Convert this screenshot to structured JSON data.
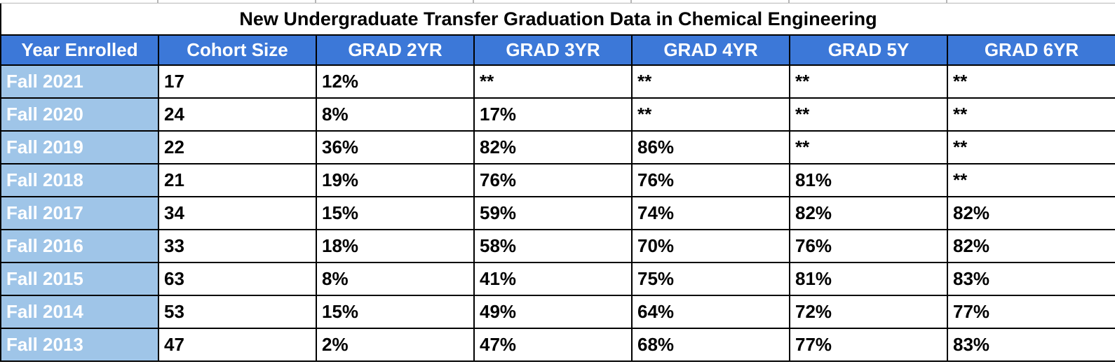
{
  "sheet": {
    "title": "New Undergraduate Transfer Graduation Data in Chemical Engineering",
    "columns": [
      "Year Enrolled",
      "Cohort Size",
      "GRAD 2YR",
      "GRAD 3YR",
      "GRAD 4YR",
      "GRAD 5Y",
      "GRAD 6YR"
    ],
    "rows": [
      {
        "year": "Fall 2021",
        "values": [
          "17",
          "12%",
          "**",
          "**",
          "**",
          "**"
        ]
      },
      {
        "year": "Fall 2020",
        "values": [
          "24",
          "8%",
          "17%",
          "**",
          "**",
          "**"
        ]
      },
      {
        "year": "Fall 2019",
        "values": [
          "22",
          "36%",
          "82%",
          "86%",
          "**",
          "**"
        ]
      },
      {
        "year": "Fall 2018",
        "values": [
          "21",
          "19%",
          "76%",
          "76%",
          "81%",
          "**"
        ]
      },
      {
        "year": "Fall 2017",
        "values": [
          "34",
          "15%",
          "59%",
          "74%",
          "82%",
          "82%"
        ]
      },
      {
        "year": "Fall 2016",
        "values": [
          "33",
          "18%",
          "58%",
          "70%",
          "76%",
          "82%"
        ]
      },
      {
        "year": "Fall 2015",
        "values": [
          "63",
          "8%",
          "41%",
          "75%",
          "81%",
          "83%"
        ]
      },
      {
        "year": "Fall 2014",
        "values": [
          "53",
          "15%",
          "49%",
          "64%",
          "72%",
          "77%"
        ]
      },
      {
        "year": "Fall 2013",
        "values": [
          "47",
          "2%",
          "47%",
          "68%",
          "77%",
          "83%"
        ]
      }
    ],
    "colors": {
      "header_bg": "#3c78d8",
      "header_text": "#ffffff",
      "row_header_bg": "#9fc5e8",
      "row_header_text": "#ffffff",
      "cell_bg": "#ffffff",
      "cell_text": "#000000",
      "border": "#000000",
      "gridline": "#b7b7b7"
    }
  }
}
